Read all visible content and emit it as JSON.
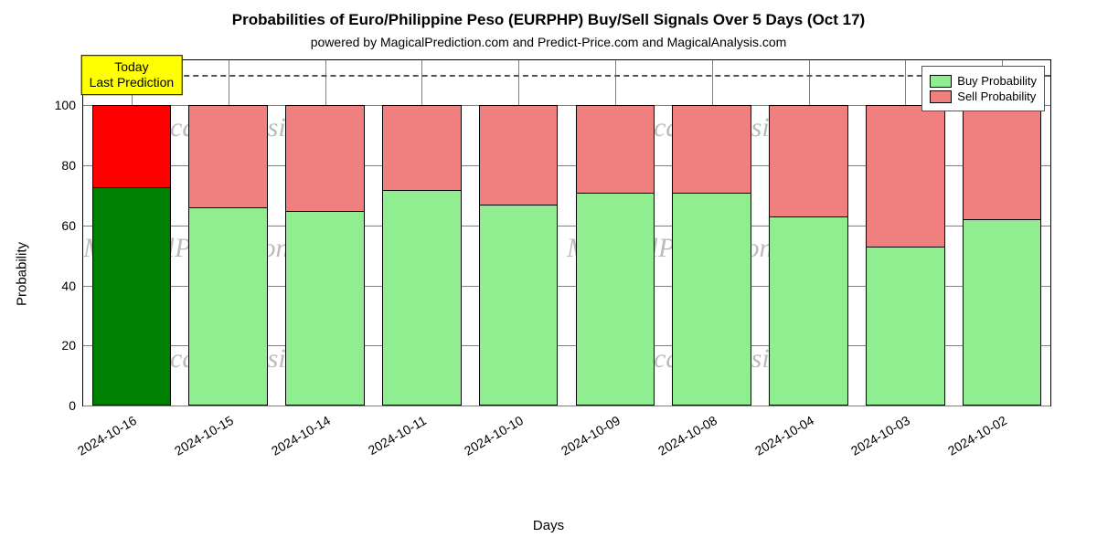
{
  "chart": {
    "type": "stacked-bar",
    "title": "Probabilities of Euro/Philippine Peso (EURPHP) Buy/Sell Signals Over 5 Days (Oct 17)",
    "subtitle": "powered by MagicalPrediction.com and Predict-Price.com and MagicalAnalysis.com",
    "title_fontsize": 17,
    "subtitle_fontsize": 14,
    "xlabel": "Days",
    "ylabel": "Probability",
    "label_fontsize": 15,
    "xtick_fontsize": 14,
    "ytick_fontsize": 14,
    "background_color": "#ffffff",
    "axis_color": "#000000",
    "grid_color": "#808080",
    "ylim": [
      0,
      115
    ],
    "yticks": [
      0,
      20,
      40,
      60,
      80,
      100
    ],
    "bar_width": 0.82,
    "categories": [
      "2024-10-16",
      "2024-10-15",
      "2024-10-14",
      "2024-10-11",
      "2024-10-10",
      "2024-10-09",
      "2024-10-08",
      "2024-10-04",
      "2024-10-03",
      "2024-10-02"
    ],
    "series": [
      {
        "name": "Buy Probability",
        "legend_color": "#90ee90",
        "values": [
          73,
          66,
          65,
          72,
          67,
          71,
          71,
          63,
          53,
          62
        ]
      },
      {
        "name": "Sell Probability",
        "legend_color": "#f08080",
        "values": [
          27,
          34,
          35,
          28,
          33,
          29,
          29,
          37,
          47,
          38
        ]
      }
    ],
    "bar_colors": {
      "buy": [
        "#008000",
        "#90ee90",
        "#90ee90",
        "#90ee90",
        "#90ee90",
        "#90ee90",
        "#90ee90",
        "#90ee90",
        "#90ee90",
        "#90ee90"
      ],
      "sell": [
        "#ff0000",
        "#f08080",
        "#f08080",
        "#f08080",
        "#f08080",
        "#f08080",
        "#f08080",
        "#f08080",
        "#f08080",
        "#f08080"
      ]
    },
    "reference_line": {
      "y": 110,
      "style": "dashed",
      "color": "#555555",
      "width": 2
    },
    "annotation": {
      "text": "Today\nLast Prediction",
      "background": "#ffff00",
      "x_index": 0,
      "y": 110
    },
    "legend": {
      "position": "top-right",
      "items": [
        "Buy Probability",
        "Sell Probability"
      ],
      "colors": [
        "#90ee90",
        "#f08080"
      ]
    },
    "watermarks": [
      "MagicalAnalysis.com",
      "MagicalAnalysis.com",
      "MagicalPrediction.com",
      "MagicalPrediction.com",
      "MagicalAnalysis.com",
      "MagicalAnalysis.com"
    ],
    "xtick_rotation_deg": 30
  }
}
